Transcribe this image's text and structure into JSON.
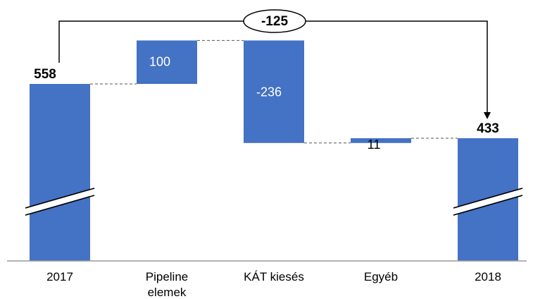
{
  "chart_data": {
    "type": "waterfall",
    "categories": [
      [
        "2017"
      ],
      [
        "Pipeline",
        "elemek"
      ],
      [
        "KÁT kiesés"
      ],
      [
        "Egyéb"
      ],
      [
        "2018"
      ]
    ],
    "values": [
      558,
      100,
      -236,
      11,
      433
    ],
    "kinds": [
      "total",
      "delta",
      "delta",
      "delta",
      "total"
    ],
    "data_labels": [
      "558",
      "100",
      "-236",
      "11",
      "433"
    ],
    "difference": {
      "from": "2017",
      "to": "2018",
      "value": -125,
      "label": "-125"
    },
    "axis_break": true,
    "grid": false,
    "legend": "none",
    "bar_color": "#4472c4"
  }
}
